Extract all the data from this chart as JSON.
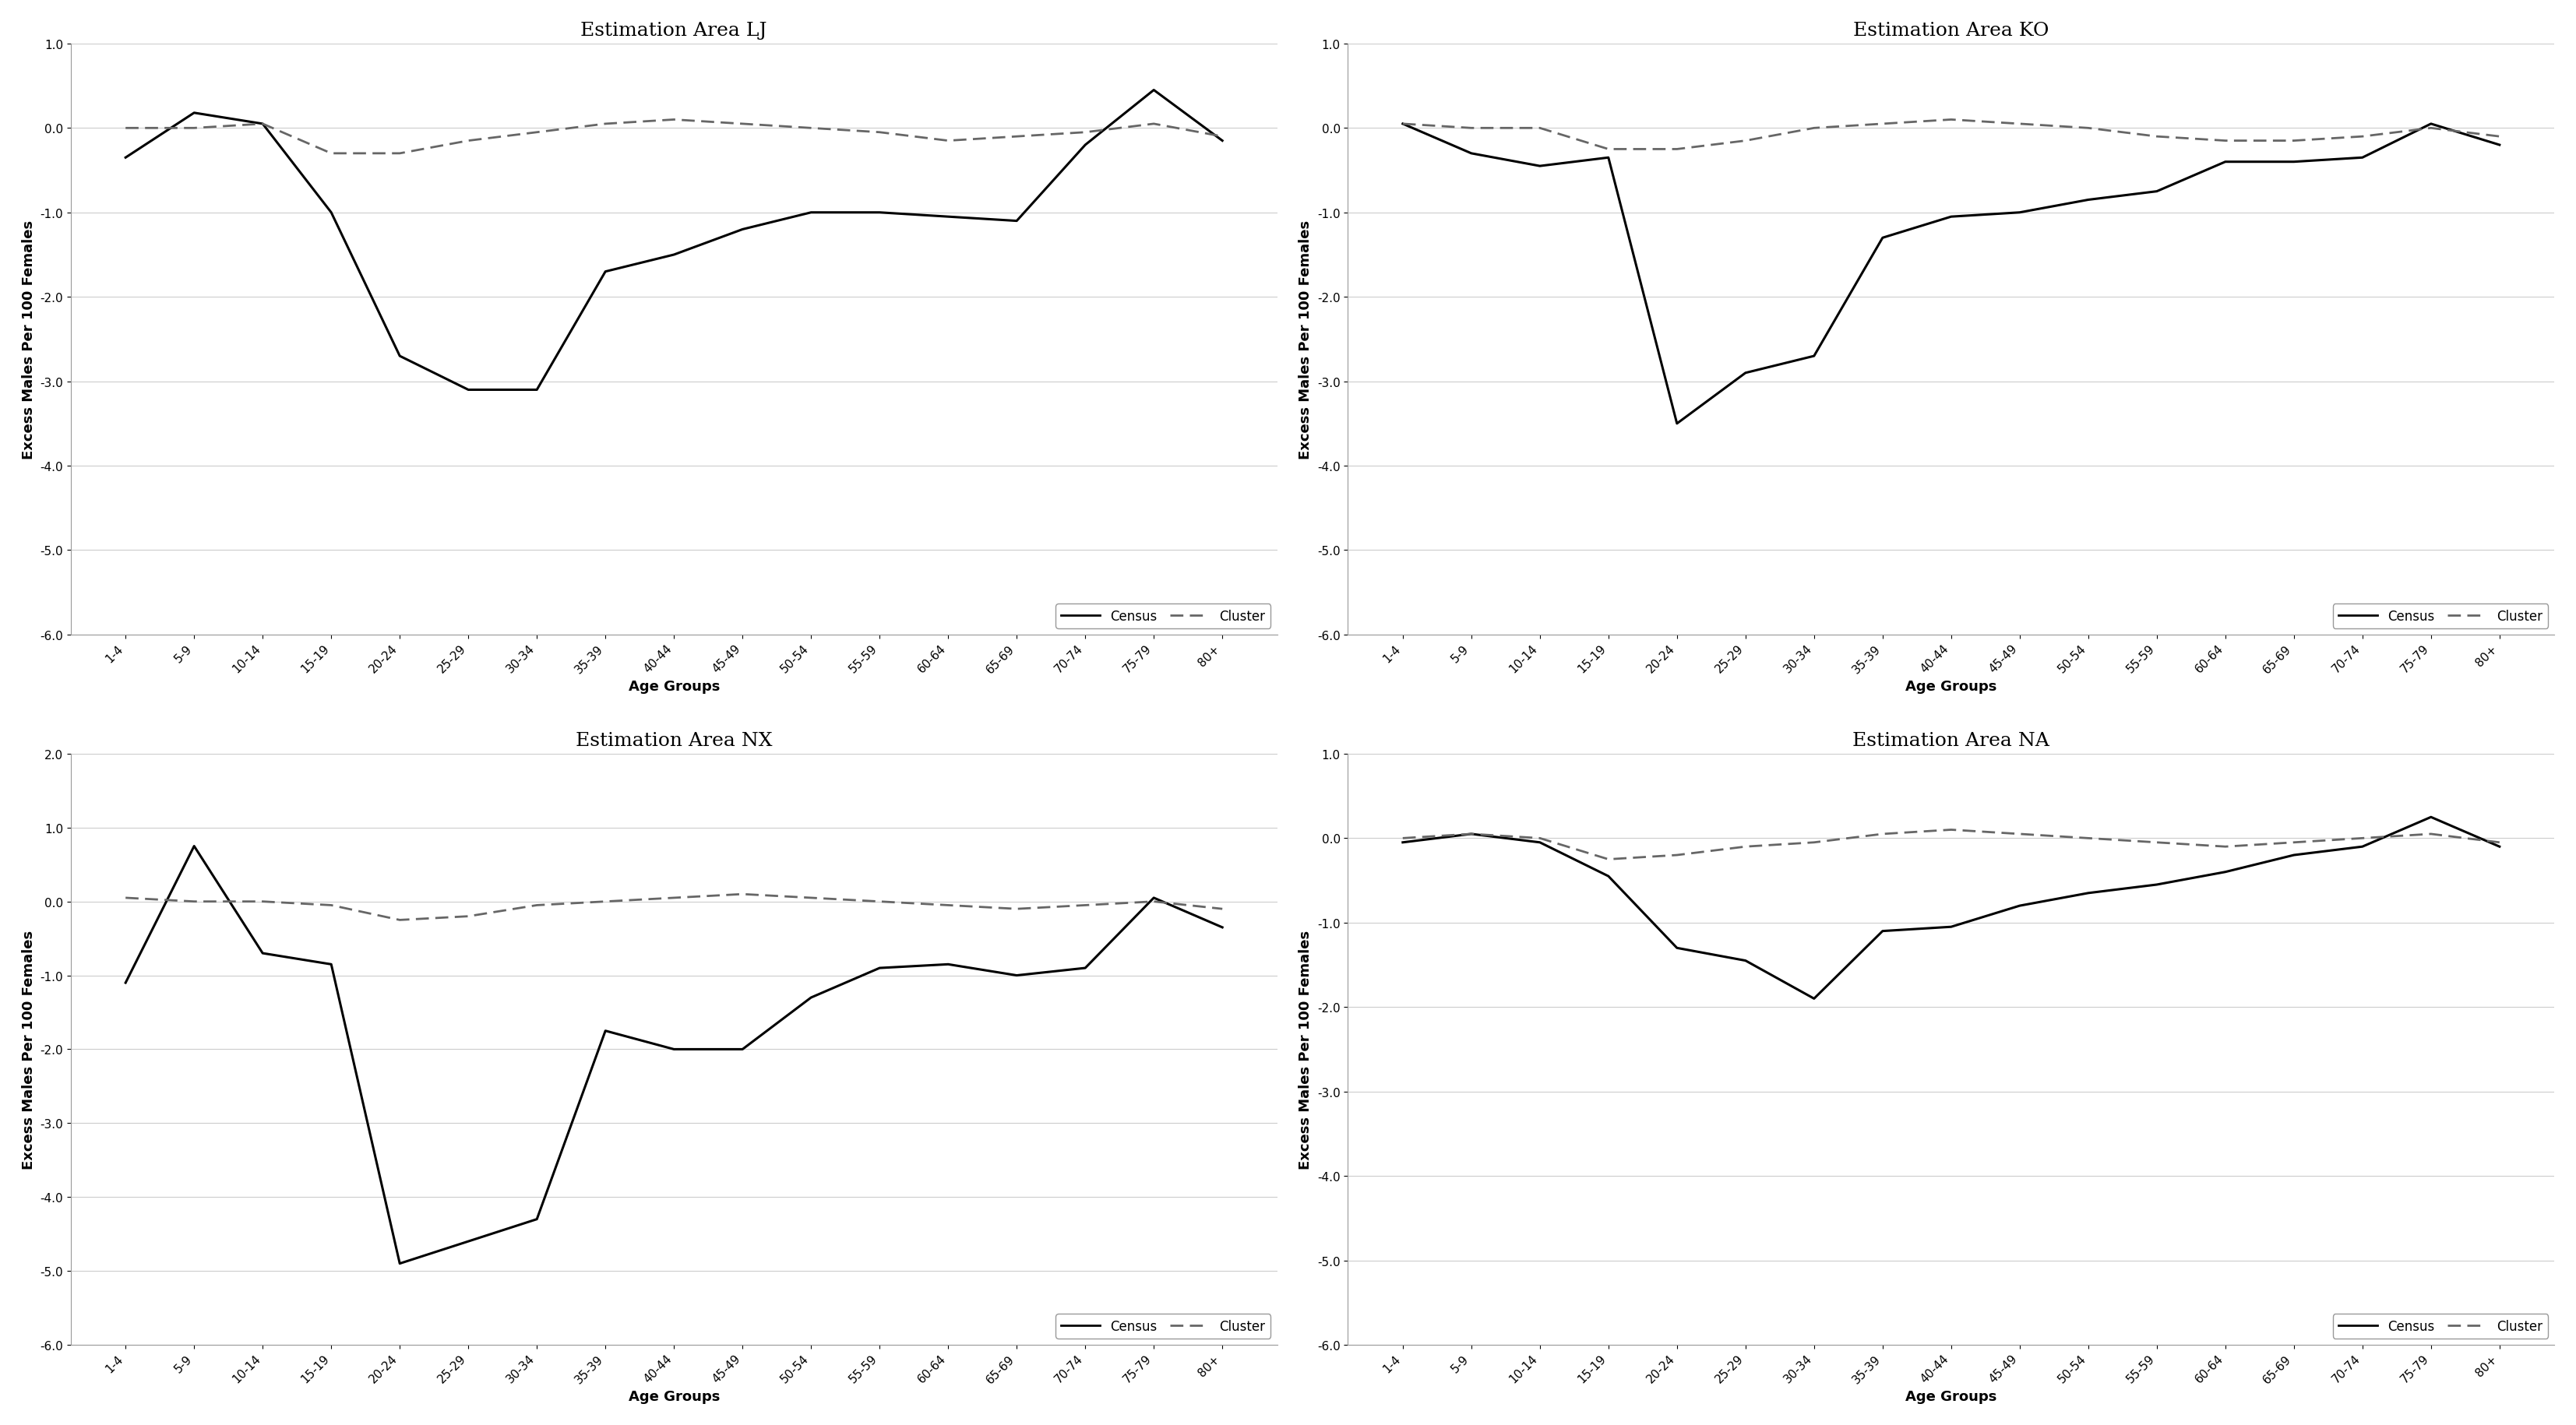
{
  "age_groups": [
    "1-4",
    "5-9",
    "10-14",
    "15-19",
    "20-24",
    "25-29",
    "30-34",
    "35-39",
    "40-44",
    "45-49",
    "50-54",
    "55-59",
    "60-64",
    "65-69",
    "70-74",
    "75-79",
    "80+"
  ],
  "panels": [
    {
      "title": "Estimation Area LJ",
      "census": [
        -0.35,
        0.18,
        0.05,
        -1.0,
        -2.7,
        -3.1,
        -3.1,
        -1.7,
        -1.5,
        -1.2,
        -1.0,
        -1.0,
        -1.05,
        -1.1,
        -0.2,
        0.45,
        -0.15
      ],
      "cluster": [
        0.0,
        0.0,
        0.05,
        -0.3,
        -0.3,
        -0.15,
        -0.05,
        0.05,
        0.1,
        0.05,
        0.0,
        -0.05,
        -0.15,
        -0.1,
        -0.05,
        0.05,
        -0.1
      ],
      "ylim": [
        -6.0,
        1.0
      ],
      "yticks": [
        1.0,
        0.0,
        -1.0,
        -2.0,
        -3.0,
        -4.0,
        -5.0,
        -6.0
      ]
    },
    {
      "title": "Estimation Area KO",
      "census": [
        0.05,
        -0.3,
        -0.45,
        -0.35,
        -3.5,
        -2.9,
        -2.7,
        -1.3,
        -1.05,
        -1.0,
        -0.85,
        -0.75,
        -0.4,
        -0.4,
        -0.35,
        0.05,
        -0.2
      ],
      "cluster": [
        0.05,
        0.0,
        0.0,
        -0.25,
        -0.25,
        -0.15,
        0.0,
        0.05,
        0.1,
        0.05,
        0.0,
        -0.1,
        -0.15,
        -0.15,
        -0.1,
        0.0,
        -0.1
      ],
      "ylim": [
        -6.0,
        1.0
      ],
      "yticks": [
        1.0,
        0.0,
        -1.0,
        -2.0,
        -3.0,
        -4.0,
        -5.0,
        -6.0
      ]
    },
    {
      "title": "Estimation Area NX",
      "census": [
        -1.1,
        0.75,
        -0.7,
        -0.85,
        -4.9,
        -4.6,
        -4.3,
        -1.75,
        -2.0,
        -2.0,
        -1.3,
        -0.9,
        -0.85,
        -1.0,
        -0.9,
        0.05,
        -0.35
      ],
      "cluster": [
        0.05,
        0.0,
        0.0,
        -0.05,
        -0.25,
        -0.2,
        -0.05,
        0.0,
        0.05,
        0.1,
        0.05,
        0.0,
        -0.05,
        -0.1,
        -0.05,
        0.0,
        -0.1
      ],
      "ylim": [
        -6.0,
        2.0
      ],
      "yticks": [
        2.0,
        1.0,
        0.0,
        -1.0,
        -2.0,
        -3.0,
        -4.0,
        -5.0,
        -6.0
      ]
    },
    {
      "title": "Estimation Area NA",
      "census": [
        -0.05,
        0.05,
        -0.05,
        -0.45,
        -1.3,
        -1.45,
        -1.9,
        -1.1,
        -1.05,
        -0.8,
        -0.65,
        -0.55,
        -0.4,
        -0.2,
        -0.1,
        0.25,
        -0.1
      ],
      "cluster": [
        0.0,
        0.05,
        0.0,
        -0.25,
        -0.2,
        -0.1,
        -0.05,
        0.05,
        0.1,
        0.05,
        0.0,
        -0.05,
        -0.1,
        -0.05,
        0.0,
        0.05,
        -0.05
      ],
      "ylim": [
        -6.0,
        1.0
      ],
      "yticks": [
        1.0,
        0.0,
        -1.0,
        -2.0,
        -3.0,
        -4.0,
        -5.0,
        -6.0
      ]
    }
  ],
  "ylabel": "Excess Males Per 100 Females",
  "xlabel": "Age Groups",
  "background_color": "#ffffff",
  "line_color_census": "#000000",
  "line_color_cluster": "#666666",
  "linewidth_census": 2.2,
  "linewidth_cluster": 2.0,
  "title_fontsize": 18,
  "label_fontsize": 13,
  "tick_fontsize": 11,
  "legend_fontsize": 12
}
